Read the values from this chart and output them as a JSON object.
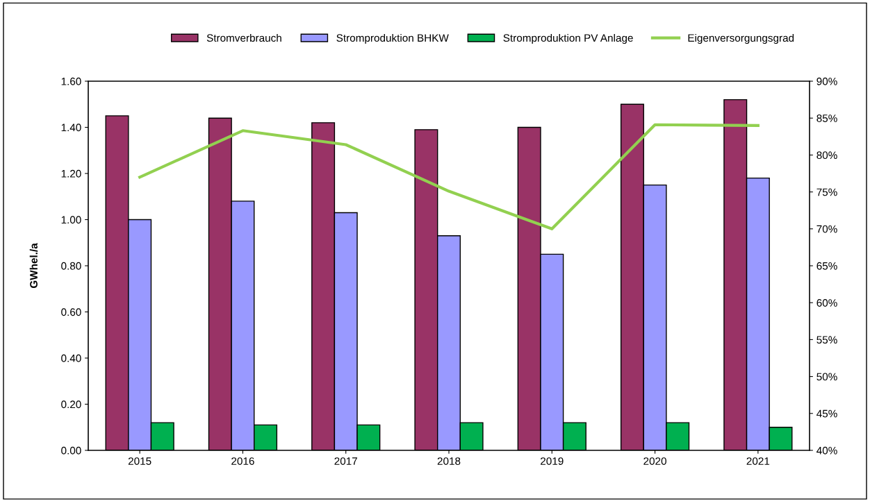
{
  "chart_data": {
    "type": "bar",
    "categories": [
      "2015",
      "2016",
      "2017",
      "2018",
      "2019",
      "2020",
      "2021"
    ],
    "ylabel": "GWhel./a",
    "series": [
      {
        "name": "Stromverbrauch",
        "color": "#993366",
        "values": [
          1.45,
          1.44,
          1.42,
          1.39,
          1.4,
          1.5,
          1.52
        ]
      },
      {
        "name": "Stromproduktion BHKW",
        "color": "#9999ff",
        "values": [
          1.0,
          1.08,
          1.03,
          0.93,
          0.85,
          1.15,
          1.18
        ]
      },
      {
        "name": "Stromproduktion PV Anlage",
        "color": "#00b050",
        "values": [
          0.12,
          0.11,
          0.11,
          0.12,
          0.12,
          0.12,
          0.1
        ]
      },
      {
        "name": "Eigenversorgungsgrad",
        "type": "line",
        "axis": "y2",
        "color": "#92d050",
        "values": [
          77,
          83.3,
          81.4,
          75.1,
          70,
          84.1,
          84
        ]
      }
    ],
    "ylim": [
      0,
      1.6
    ],
    "yticks": [
      {
        "value": 0,
        "label": "0.00"
      },
      {
        "value": 0.2,
        "label": "0.20"
      },
      {
        "value": 0.4,
        "label": "0.40"
      },
      {
        "value": 0.6,
        "label": "0.60"
      },
      {
        "value": 0.8,
        "label": "0.80"
      },
      {
        "value": 1.0,
        "label": "1.00"
      },
      {
        "value": 1.2,
        "label": "1.20"
      },
      {
        "value": 1.4,
        "label": "1.40"
      },
      {
        "value": 1.6,
        "label": "1.60"
      }
    ],
    "y2lim": [
      40,
      90
    ],
    "y2ticks": [
      {
        "value": 40,
        "label": "40%"
      },
      {
        "value": 45,
        "label": "45%"
      },
      {
        "value": 50,
        "label": "50%"
      },
      {
        "value": 55,
        "label": "55%"
      },
      {
        "value": 60,
        "label": "60%"
      },
      {
        "value": 65,
        "label": "65%"
      },
      {
        "value": 70,
        "label": "70%"
      },
      {
        "value": 75,
        "label": "75%"
      },
      {
        "value": 80,
        "label": "80%"
      },
      {
        "value": 85,
        "label": "85%"
      },
      {
        "value": 90,
        "label": "90%"
      }
    ],
    "grid": false,
    "legend": "top",
    "marker": "none"
  }
}
